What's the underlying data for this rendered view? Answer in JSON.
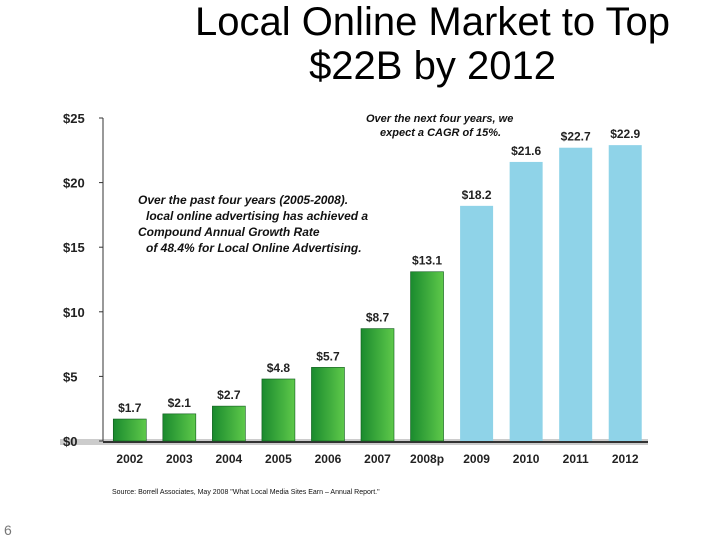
{
  "slide": {
    "title_line1": "Local Online Market to Top",
    "title_line2": "$22B by 2012",
    "note_past": [
      "Over the past four years (2005-2008).",
      "local online advertising has achieved a",
      "Compound Annual Growth Rate",
      "of 48.4% for Local Online Advertising."
    ],
    "note_future": [
      "Over the next four years, we",
      "expect a CAGR of 15%."
    ],
    "source": "Source: Borrell Associates, May 2008 \"What Local Media Sites Earn – Annual Report.\"",
    "page_number": "6"
  },
  "colors": {
    "actual_dark": "#1a8a2e",
    "actual_light": "#5ec94a",
    "forecast": "#8fd3e8",
    "axis": "#333333",
    "baseline_band": "#cccccc"
  },
  "chart_data": {
    "type": "bar",
    "categories": [
      "2002",
      "2003",
      "2004",
      "2005",
      "2006",
      "2007",
      "2008p",
      "2009",
      "2010",
      "2011",
      "2012"
    ],
    "values": [
      1.7,
      2.1,
      2.7,
      4.8,
      5.7,
      8.7,
      13.1,
      18.2,
      21.6,
      22.7,
      22.9
    ],
    "value_labels": [
      "$1.7",
      "$2.1",
      "$2.7",
      "$4.8",
      "$5.7",
      "$8.7",
      "$13.1",
      "$18.2",
      "$21.6",
      "$22.7",
      "$22.9"
    ],
    "bar_style": [
      "actual",
      "actual",
      "actual",
      "actual",
      "actual",
      "actual",
      "actual",
      "forecast",
      "forecast",
      "forecast",
      "forecast"
    ],
    "yticks": [
      0,
      5,
      10,
      15,
      20,
      25
    ],
    "ytick_labels": [
      "$0",
      "$5",
      "$10",
      "$15",
      "$20",
      "$25"
    ],
    "ylim": [
      0,
      25
    ],
    "grid": false
  }
}
